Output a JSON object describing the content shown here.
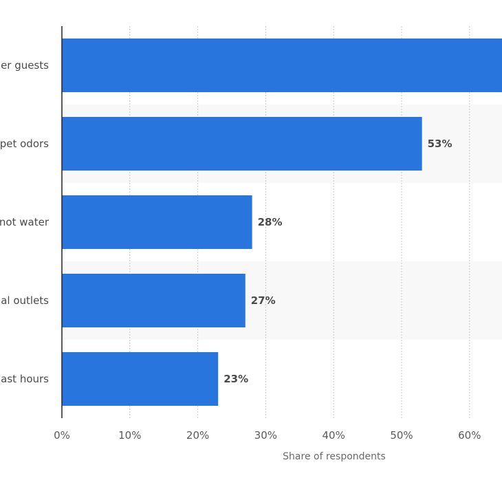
{
  "chart_data": {
    "type": "bar",
    "orientation": "horizontal",
    "categories": [
      "er guests",
      "pet odors",
      "not water",
      "al outlets",
      "ast hours"
    ],
    "values": [
      65,
      53,
      28,
      27,
      23
    ],
    "value_labels": [
      "",
      "53%",
      "28%",
      "27%",
      "23%"
    ],
    "xlabel": "Share of respondents",
    "ylabel": "",
    "xlim": [
      0,
      65
    ],
    "x_ticks": [
      0,
      10,
      20,
      30,
      40,
      50,
      60
    ],
    "x_tick_labels": [
      "0%",
      "10%",
      "20%",
      "30%",
      "40%",
      "50%",
      "60%"
    ],
    "grid": true,
    "bar_color": "#2876dd",
    "band_color": "#f8f8f8"
  }
}
